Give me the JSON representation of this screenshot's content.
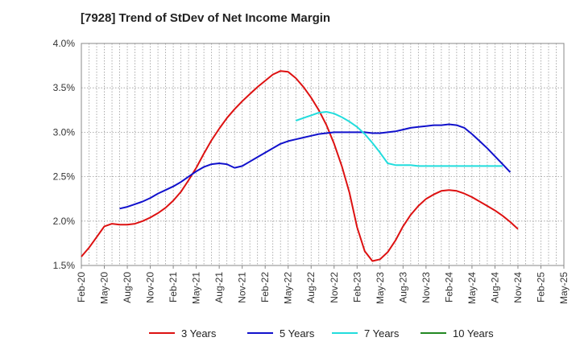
{
  "chart_data": {
    "type": "line",
    "title": "[7928]  Trend of StDev of Net Income Margin",
    "xlabel": "",
    "ylabel": "",
    "x_ticks": [
      "Feb-20",
      "May-20",
      "Aug-20",
      "Nov-20",
      "Feb-21",
      "May-21",
      "Aug-21",
      "Nov-21",
      "Feb-22",
      "May-22",
      "Aug-22",
      "Nov-22",
      "Feb-23",
      "May-23",
      "Aug-23",
      "Nov-23",
      "Feb-24",
      "May-24",
      "Aug-24",
      "Nov-24",
      "Feb-25",
      "May-25"
    ],
    "y_ticks": [
      "1.5%",
      "2.0%",
      "2.5%",
      "3.0%",
      "3.5%",
      "4.0%"
    ],
    "ylim": [
      1.5,
      4.0
    ],
    "grid": true,
    "legend_position": "bottom",
    "series": [
      {
        "name": "3 Years",
        "color": "#dd1111",
        "values": [
          1.6,
          1.7,
          1.82,
          1.94,
          1.97,
          1.96,
          1.96,
          1.97,
          2.0,
          2.04,
          2.09,
          2.15,
          2.23,
          2.33,
          2.46,
          2.6,
          2.76,
          2.91,
          3.04,
          3.16,
          3.26,
          3.35,
          3.43,
          3.51,
          3.58,
          3.65,
          3.69,
          3.68,
          3.61,
          3.51,
          3.39,
          3.25,
          3.08,
          2.87,
          2.62,
          2.32,
          1.93,
          1.66,
          1.55,
          1.57,
          1.65,
          1.78,
          1.94,
          2.07,
          2.17,
          2.25,
          2.3,
          2.34,
          2.35,
          2.34,
          2.31,
          2.27,
          2.22,
          2.17,
          2.12,
          2.06,
          1.99,
          1.91
        ]
      },
      {
        "name": "5 Years",
        "color": "#1111cc",
        "values": [
          null,
          null,
          null,
          null,
          null,
          2.14,
          2.16,
          2.19,
          2.22,
          2.26,
          2.31,
          2.35,
          2.39,
          2.44,
          2.5,
          2.56,
          2.61,
          2.64,
          2.65,
          2.64,
          2.6,
          2.62,
          2.67,
          2.72,
          2.77,
          2.82,
          2.87,
          2.9,
          2.92,
          2.94,
          2.96,
          2.98,
          2.99,
          3.0,
          3.0,
          3.0,
          3.0,
          3.0,
          2.99,
          2.99,
          3.0,
          3.01,
          3.03,
          3.05,
          3.06,
          3.07,
          3.08,
          3.08,
          3.09,
          3.08,
          3.05,
          2.98,
          2.9,
          2.82,
          2.73,
          2.64,
          2.55
        ]
      },
      {
        "name": "7 Years",
        "color": "#22dddd",
        "values": [
          null,
          null,
          null,
          null,
          null,
          null,
          null,
          null,
          null,
          null,
          null,
          null,
          null,
          null,
          null,
          null,
          null,
          null,
          null,
          null,
          null,
          null,
          null,
          null,
          null,
          null,
          null,
          null,
          3.13,
          3.16,
          3.19,
          3.22,
          3.23,
          3.21,
          3.17,
          3.12,
          3.06,
          2.98,
          2.88,
          2.77,
          2.65,
          2.63,
          2.63,
          2.63,
          2.62,
          2.62,
          2.62,
          2.62,
          2.62,
          2.62,
          2.62,
          2.62,
          2.62,
          2.62,
          2.62,
          2.62
        ]
      },
      {
        "name": "10 Years",
        "color": "#228822",
        "values": []
      }
    ]
  }
}
